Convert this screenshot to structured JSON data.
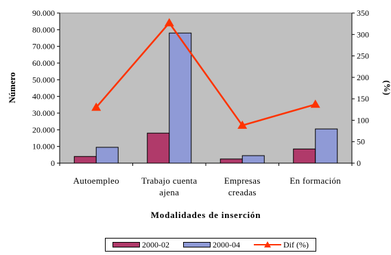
{
  "chart_data": {
    "type": "bar",
    "categories": [
      [
        "Autoempleo"
      ],
      [
        "Trabajo cuenta",
        "ajena"
      ],
      [
        "Empresas",
        "creadas"
      ],
      [
        "En formación"
      ]
    ],
    "series": [
      {
        "name": "2000-02",
        "type": "bar",
        "axis": "left",
        "color": "#b03a6a",
        "values": [
          4000,
          18000,
          2500,
          8500
        ]
      },
      {
        "name": "2000-04",
        "type": "bar",
        "axis": "left",
        "color": "#8f9ad6",
        "values": [
          9500,
          78000,
          4500,
          20500
        ]
      },
      {
        "name": "Dif (%)",
        "type": "line",
        "axis": "right",
        "color": "#ff3300",
        "marker": "triangle",
        "values": [
          130,
          327,
          88,
          137
        ]
      }
    ],
    "xlabel": "Modalidades de inserción",
    "ylabel": "Número",
    "y2label": "(%)",
    "ylim": [
      0,
      90000
    ],
    "y2lim": [
      0,
      350
    ],
    "yticks": [
      "0",
      "10.000",
      "20.000",
      "30.000",
      "40.000",
      "50.000",
      "60.000",
      "70.000",
      "80.000",
      "90.000"
    ],
    "y2ticks": [
      "0",
      "50",
      "100",
      "150",
      "200",
      "250",
      "300",
      "350"
    ],
    "plot_background": "#c0c0c0",
    "legend_position": "bottom",
    "grid": false
  }
}
